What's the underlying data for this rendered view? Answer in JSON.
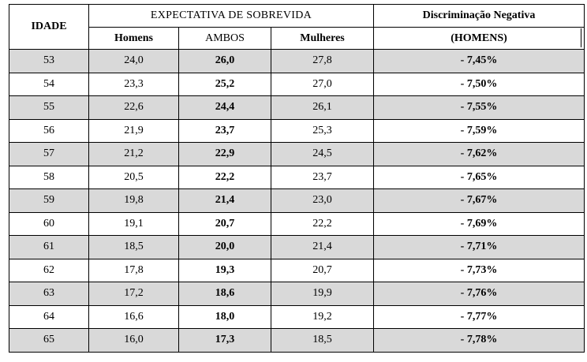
{
  "header": {
    "idade": "IDADE",
    "expectativa": "EXPECTATIVA DE SOBREVIDA",
    "discriminacao": "Discriminação Negativa",
    "homens_sub": "(HOMENS)",
    "col_homens": "Homens",
    "col_ambos": "AMBOS",
    "col_mulheres": "Mulheres"
  },
  "rows": [
    {
      "idade": "53",
      "homens": "24,0",
      "ambos": "26,0",
      "mulheres": "27,8",
      "disc": "- 7,45%"
    },
    {
      "idade": "54",
      "homens": "23,3",
      "ambos": "25,2",
      "mulheres": "27,0",
      "disc": "- 7,50%"
    },
    {
      "idade": "55",
      "homens": "22,6",
      "ambos": "24,4",
      "mulheres": "26,1",
      "disc": "- 7,55%"
    },
    {
      "idade": "56",
      "homens": "21,9",
      "ambos": "23,7",
      "mulheres": "25,3",
      "disc": "- 7,59%"
    },
    {
      "idade": "57",
      "homens": "21,2",
      "ambos": "22,9",
      "mulheres": "24,5",
      "disc": "- 7,62%"
    },
    {
      "idade": "58",
      "homens": "20,5",
      "ambos": "22,2",
      "mulheres": "23,7",
      "disc": "- 7,65%"
    },
    {
      "idade": "59",
      "homens": "19,8",
      "ambos": "21,4",
      "mulheres": "23,0",
      "disc": "- 7,67%"
    },
    {
      "idade": "60",
      "homens": "19,1",
      "ambos": "20,7",
      "mulheres": "22,2",
      "disc": "- 7,69%"
    },
    {
      "idade": "61",
      "homens": "18,5",
      "ambos": "20,0",
      "mulheres": "21,4",
      "disc": "- 7,71%"
    },
    {
      "idade": "62",
      "homens": "17,8",
      "ambos": "19,3",
      "mulheres": "20,7",
      "disc": "- 7,73%"
    },
    {
      "idade": "63",
      "homens": "17,2",
      "ambos": "18,6",
      "mulheres": "19,9",
      "disc": "- 7,76%"
    },
    {
      "idade": "64",
      "homens": "16,6",
      "ambos": "18,0",
      "mulheres": "19,2",
      "disc": "- 7,77%"
    },
    {
      "idade": "65",
      "homens": "16,0",
      "ambos": "17,3",
      "mulheres": "18,5",
      "disc": "- 7,78%"
    }
  ],
  "colors": {
    "shaded_row": "#d9d9d9",
    "plain_row": "#ffffff"
  }
}
